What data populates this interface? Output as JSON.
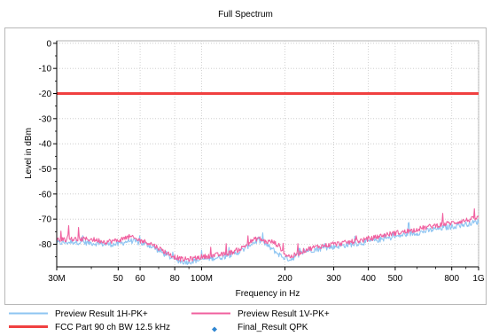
{
  "colors": {
    "frame_border": "#b8b8b8",
    "plot_background": "#ffffff",
    "grid": "#c8c8c8",
    "preview_h": "#8ec5f2",
    "preview_v": "#f0609f",
    "limit": "#f04040",
    "final": "#2f86d1"
  },
  "chart_data": {
    "type": "line",
    "title": "Full Spectrum",
    "xlabel": "Frequency in Hz",
    "ylabel": "Level in dBm",
    "x_scale": "log",
    "xlim": [
      30000000,
      1000000000
    ],
    "ylim": [
      -89,
      1
    ],
    "grid": true,
    "legend_position": "bottom",
    "x_ticks": [
      {
        "value": 30000000,
        "label": "30M"
      },
      {
        "value": 50000000,
        "label": "50"
      },
      {
        "value": 60000000,
        "label": "60"
      },
      {
        "value": 80000000,
        "label": "80"
      },
      {
        "value": 100000000,
        "label": "100M"
      },
      {
        "value": 200000000,
        "label": "200"
      },
      {
        "value": 300000000,
        "label": "300"
      },
      {
        "value": 400000000,
        "label": "400"
      },
      {
        "value": 500000000,
        "label": "500"
      },
      {
        "value": 800000000,
        "label": "800"
      },
      {
        "value": 1000000000,
        "label": "1G"
      }
    ],
    "y_ticks": [
      {
        "value": 0,
        "label": "0"
      },
      {
        "value": -10,
        "label": "-10"
      },
      {
        "value": -20,
        "label": "-20"
      },
      {
        "value": -30,
        "label": "-30"
      },
      {
        "value": -40,
        "label": "-40"
      },
      {
        "value": -50,
        "label": "-50"
      },
      {
        "value": -60,
        "label": "-60"
      },
      {
        "value": -70,
        "label": "-70"
      },
      {
        "value": -80,
        "label": "-80"
      }
    ],
    "series": [
      {
        "name": "Preview Result 1H-PK+",
        "kind": "line",
        "color": "#8ec5f2",
        "noise_db": 2.2,
        "x": [
          30000000,
          35000000,
          40000000,
          45000000,
          50000000,
          55000000,
          60000000,
          65000000,
          70000000,
          75000000,
          80000000,
          85000000,
          90000000,
          95000000,
          100000000,
          110000000,
          120000000,
          130000000,
          140000000,
          150000000,
          160000000,
          170000000,
          180000000,
          190000000,
          200000000,
          210000000,
          220000000,
          240000000,
          260000000,
          280000000,
          300000000,
          350000000,
          400000000,
          450000000,
          500000000,
          550000000,
          600000000,
          700000000,
          800000000,
          900000000,
          1000000000
        ],
        "y": [
          -79.5,
          -79,
          -79.5,
          -80,
          -80,
          -78.5,
          -79.5,
          -80.5,
          -82.5,
          -84.5,
          -86,
          -87,
          -87,
          -86.5,
          -86,
          -85.5,
          -85,
          -84,
          -82.5,
          -80,
          -78.5,
          -80,
          -82,
          -84,
          -85.5,
          -86,
          -84.5,
          -82.5,
          -82,
          -81.5,
          -81,
          -80,
          -79,
          -78,
          -77,
          -76,
          -75.5,
          -74,
          -73,
          -72,
          -71
        ]
      },
      {
        "name": "Preview Result 1V-PK+",
        "kind": "line",
        "color": "#f0609f",
        "noise_db": 2.0,
        "x": [
          30000000,
          35000000,
          40000000,
          45000000,
          50000000,
          55000000,
          60000000,
          65000000,
          70000000,
          75000000,
          80000000,
          85000000,
          90000000,
          95000000,
          100000000,
          110000000,
          120000000,
          130000000,
          140000000,
          150000000,
          160000000,
          170000000,
          180000000,
          190000000,
          200000000,
          210000000,
          220000000,
          240000000,
          260000000,
          280000000,
          300000000,
          350000000,
          400000000,
          450000000,
          500000000,
          550000000,
          600000000,
          700000000,
          800000000,
          900000000,
          1000000000
        ],
        "y": [
          -78,
          -78,
          -78,
          -79,
          -78.5,
          -77,
          -78.5,
          -79.5,
          -81.5,
          -83.5,
          -85,
          -86,
          -86,
          -85.5,
          -85,
          -84.5,
          -84,
          -83,
          -81.5,
          -79,
          -77.5,
          -79,
          -79,
          -80.5,
          -84,
          -85,
          -84,
          -82,
          -81,
          -80.5,
          -80,
          -79,
          -78,
          -76.5,
          -75.5,
          -75,
          -74,
          -72.5,
          -71.5,
          -70.5,
          -69.5
        ]
      },
      {
        "name": "FCC Part 90 ch BW 12.5 kHz",
        "kind": "line",
        "color": "#f04040",
        "x": [
          30000000,
          1000000000
        ],
        "y": [
          -20,
          -20
        ]
      },
      {
        "name": "Final_Result QPK",
        "kind": "scatter",
        "color": "#2f86d1",
        "x": [],
        "y": []
      }
    ]
  }
}
